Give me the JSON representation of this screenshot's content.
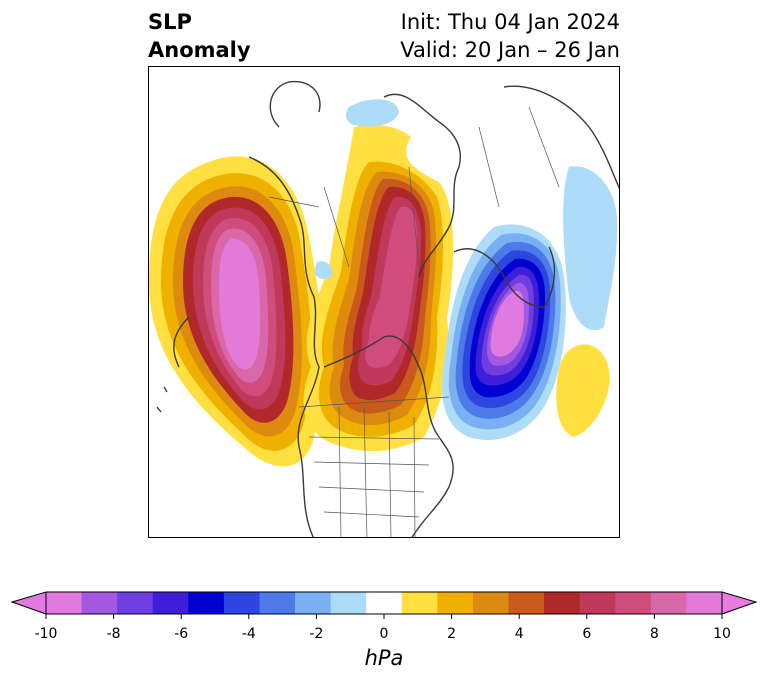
{
  "header": {
    "title_line1": "SLP",
    "title_line2": "Anomaly",
    "init_label": "Init: Thu 04 Jan 2024",
    "valid_label": "Valid: 20 Jan – 26 Jan"
  },
  "map": {
    "projection": "polar stereographic (North America / Arctic)",
    "field": "Sea level pressure anomaly"
  },
  "colorbar": {
    "unit_label": "hPa",
    "extend": "both",
    "levels": [
      -10,
      -9,
      -8,
      -7,
      -6,
      -5,
      -4,
      -3,
      -2,
      -1,
      1,
      2,
      3,
      4,
      5,
      6,
      7,
      8,
      9,
      10
    ],
    "tick_labels": [
      "-10",
      "-8",
      "-6",
      "-4",
      "-2",
      "0",
      "2",
      "4",
      "6",
      "8",
      "10"
    ],
    "colors": [
      "#e07ae0",
      "#a258e0",
      "#6e3ee0",
      "#3e1ed8",
      "#0000d0",
      "#2e46e0",
      "#4c7ae8",
      "#78b0f2",
      "#acdcf8",
      "#ffffff",
      "#ffe040",
      "#f0b000",
      "#dc8a10",
      "#c85a1c",
      "#b0282a",
      "#c0385a",
      "#d04c7c",
      "#d868a8",
      "#e47ad8"
    ],
    "under_color": "#e07ae0",
    "over_color": "#e87ae0"
  }
}
